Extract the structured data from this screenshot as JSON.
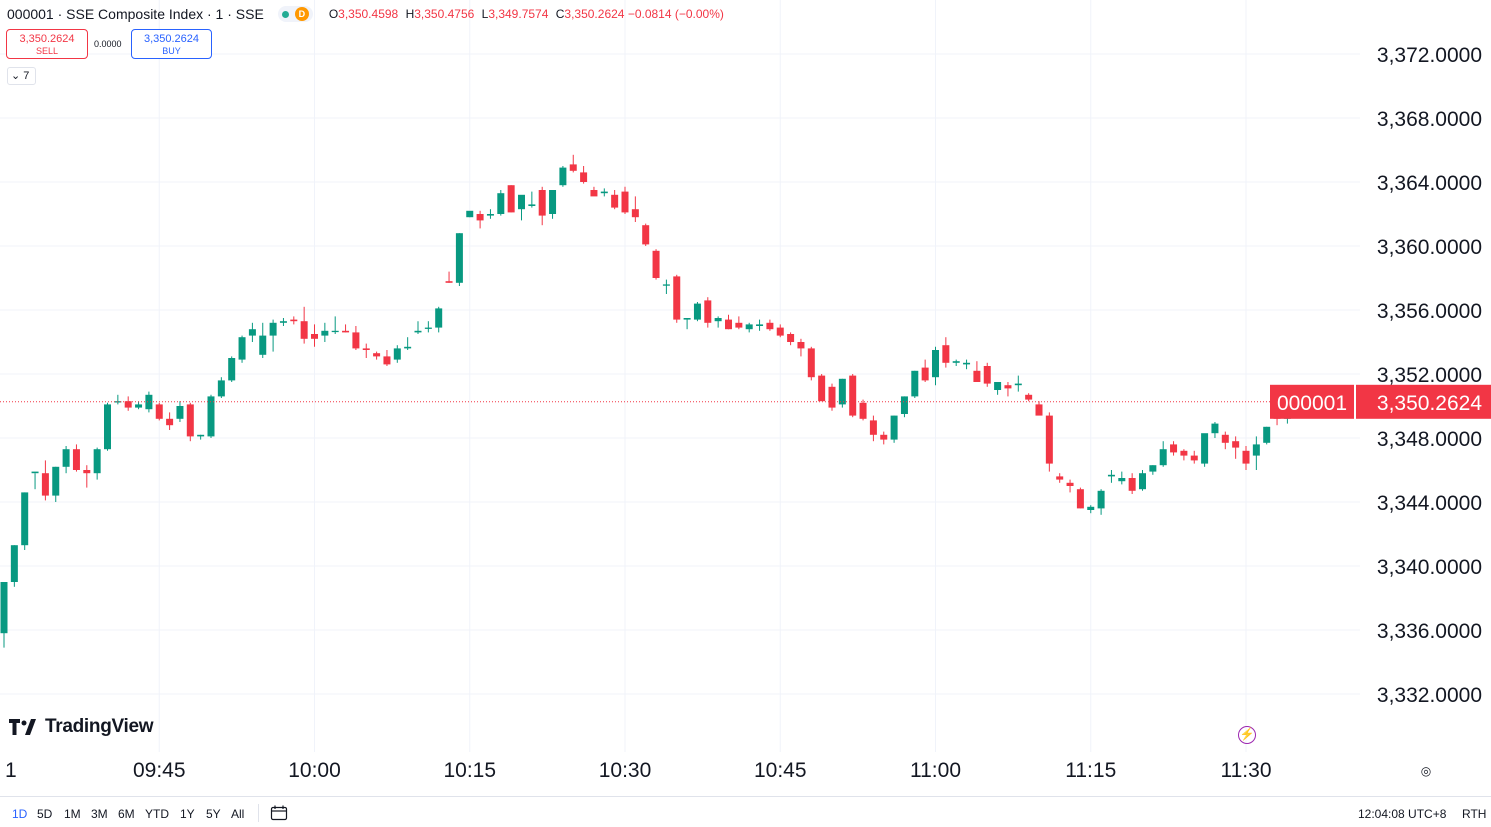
{
  "legend": {
    "title": "000001 · SSE Composite Index · 1 · SSE",
    "badge": "D",
    "o_label": "O",
    "o": "3,350.4598",
    "h_label": "H",
    "h": "3,350.4756",
    "l_label": "L",
    "l": "3,349.7574",
    "c_label": "C",
    "c": "3,350.2624",
    "change": "−0.0814 (−0.00%)"
  },
  "trade": {
    "sell_price": "3,350.2624",
    "sell_label": "SELL",
    "spread": "0.0000",
    "buy_price": "3,350.2624",
    "buy_label": "BUY"
  },
  "indicators_toggle": "7",
  "brand": "TradingView",
  "bottom": {
    "ranges": [
      "1D",
      "5D",
      "1M",
      "3M",
      "6M",
      "YTD",
      "1Y",
      "5Y",
      "All"
    ],
    "active_range": "1D",
    "clock": "12:04:08 UTC+8",
    "session": "RTH"
  },
  "colors": {
    "up": "#089981",
    "down": "#f23645",
    "grid": "#f0f3fa"
  },
  "chart_data": {
    "type": "candlestick",
    "symbol_label": "000001",
    "last_price": "3,350.2624",
    "last_value": 3350.2624,
    "ylim": [
      3329.5,
      3375.5
    ],
    "y_ticks": [
      3332,
      3336,
      3340,
      3344,
      3348,
      3352,
      3356,
      3360,
      3364,
      3368,
      3372
    ],
    "y_tick_labels": [
      "3,332.0000",
      "3,336.0000",
      "3,340.0000",
      "3,344.0000",
      "3,348.0000",
      "3,352.0000",
      "3,356.0000",
      "3,360.0000",
      "3,364.0000",
      "3,368.0000",
      "3,372.0000"
    ],
    "x_start_label": "1",
    "x_ticks": [
      15,
      30,
      45,
      60,
      75,
      90,
      105,
      120
    ],
    "x_tick_labels": [
      "09:45",
      "10:00",
      "10:15",
      "10:30",
      "10:45",
      "11:00",
      "11:15",
      "11:30"
    ],
    "candles": [
      [
        3335.8,
        3339.0,
        3334.9,
        3339.0
      ],
      [
        3339.0,
        3341.3,
        3338.7,
        3341.3
      ],
      [
        3341.3,
        3344.6,
        3341.0,
        3344.6
      ],
      [
        3345.8,
        3345.8,
        3344.8,
        3345.9
      ],
      [
        3345.8,
        3346.6,
        3344.1,
        3344.4
      ],
      [
        3344.4,
        3346.2,
        3344.0,
        3346.2
      ],
      [
        3346.2,
        3347.5,
        3345.8,
        3347.3
      ],
      [
        3347.3,
        3347.6,
        3345.9,
        3346.0
      ],
      [
        3346.0,
        3346.3,
        3344.9,
        3345.8
      ],
      [
        3345.8,
        3347.4,
        3345.4,
        3347.3
      ],
      [
        3347.3,
        3350.2,
        3347.2,
        3350.1
      ],
      [
        3350.3,
        3350.7,
        3350.1,
        3350.3
      ],
      [
        3350.3,
        3350.6,
        3349.7,
        3349.9
      ],
      [
        3349.9,
        3350.3,
        3349.8,
        3350.1
      ],
      [
        3349.8,
        3350.9,
        3349.6,
        3350.7
      ],
      [
        3350.1,
        3350.2,
        3349.1,
        3349.2
      ],
      [
        3349.2,
        3349.6,
        3348.5,
        3348.8
      ],
      [
        3349.2,
        3350.3,
        3349.0,
        3350.0
      ],
      [
        3350.1,
        3350.2,
        3347.8,
        3348.1
      ],
      [
        3348.1,
        3348.2,
        3347.9,
        3348.2
      ],
      [
        3348.1,
        3350.7,
        3348.0,
        3350.6
      ],
      [
        3350.6,
        3351.8,
        3350.5,
        3351.6
      ],
      [
        3351.6,
        3353.1,
        3351.5,
        3353.0
      ],
      [
        3352.9,
        3354.4,
        3352.7,
        3354.3
      ],
      [
        3354.4,
        3355.2,
        3354.0,
        3354.8
      ],
      [
        3353.2,
        3355.2,
        3353.0,
        3354.4
      ],
      [
        3354.4,
        3355.4,
        3353.4,
        3355.2
      ],
      [
        3355.2,
        3355.5,
        3355.0,
        3355.3
      ],
      [
        3355.4,
        3355.6,
        3355.1,
        3355.3
      ],
      [
        3355.3,
        3356.2,
        3353.9,
        3354.2
      ],
      [
        3354.5,
        3355.1,
        3353.7,
        3354.2
      ],
      [
        3354.4,
        3355.2,
        3354.0,
        3354.7
      ],
      [
        3354.7,
        3355.6,
        3354.5,
        3354.7
      ],
      [
        3354.7,
        3355.1,
        3354.6,
        3354.6
      ],
      [
        3354.6,
        3355.0,
        3353.5,
        3353.6
      ],
      [
        3353.6,
        3353.9,
        3353.0,
        3353.5
      ],
      [
        3353.3,
        3353.4,
        3352.9,
        3353.1
      ],
      [
        3353.1,
        3353.5,
        3352.5,
        3352.6
      ],
      [
        3352.9,
        3353.8,
        3352.7,
        3353.6
      ],
      [
        3353.6,
        3354.3,
        3353.5,
        3353.7
      ],
      [
        3354.6,
        3355.3,
        3354.5,
        3354.7
      ],
      [
        3354.9,
        3355.3,
        3354.6,
        3354.9
      ],
      [
        3354.9,
        3356.2,
        3354.6,
        3356.1
      ],
      [
        3357.8,
        3358.4,
        3357.7,
        3357.7
      ],
      [
        3357.7,
        3360.8,
        3357.5,
        3360.8
      ],
      [
        3361.8,
        3362.1,
        3361.8,
        3362.2
      ],
      [
        3362.0,
        3362.2,
        3361.1,
        3361.6
      ],
      [
        3361.9,
        3362.3,
        3361.7,
        3362.0
      ],
      [
        3362.0,
        3363.5,
        3361.9,
        3363.3
      ],
      [
        3363.8,
        3363.8,
        3362.1,
        3362.1
      ],
      [
        3362.3,
        3363.1,
        3361.6,
        3363.2
      ],
      [
        3362.5,
        3363.4,
        3362.4,
        3362.6
      ],
      [
        3363.5,
        3363.7,
        3361.3,
        3361.9
      ],
      [
        3362.0,
        3363.5,
        3361.7,
        3363.5
      ],
      [
        3363.8,
        3365.0,
        3363.7,
        3364.9
      ],
      [
        3365.1,
        3365.7,
        3364.6,
        3364.7
      ],
      [
        3364.6,
        3365.0,
        3363.9,
        3364.0
      ],
      [
        3363.5,
        3363.7,
        3363.2,
        3363.1
      ],
      [
        3363.3,
        3363.6,
        3363.1,
        3363.4
      ],
      [
        3363.2,
        3363.5,
        3362.3,
        3362.4
      ],
      [
        3363.4,
        3363.7,
        3362.0,
        3362.1
      ],
      [
        3362.3,
        3363.1,
        3361.5,
        3361.8
      ],
      [
        3361.3,
        3361.4,
        3360.0,
        3360.1
      ],
      [
        3359.7,
        3359.8,
        3357.9,
        3358.0
      ],
      [
        3357.6,
        3357.9,
        3357.0,
        3357.6
      ],
      [
        3358.1,
        3358.2,
        3355.2,
        3355.4
      ],
      [
        3355.4,
        3355.5,
        3354.8,
        3355.5
      ],
      [
        3355.4,
        3356.5,
        3355.3,
        3356.4
      ],
      [
        3356.6,
        3356.8,
        3354.9,
        3355.2
      ],
      [
        3355.3,
        3355.6,
        3354.9,
        3355.5
      ],
      [
        3355.4,
        3355.7,
        3354.8,
        3354.8
      ],
      [
        3355.2,
        3355.6,
        3354.8,
        3354.9
      ],
      [
        3354.8,
        3355.2,
        3354.6,
        3355.1
      ],
      [
        3355.0,
        3355.4,
        3354.7,
        3355.1
      ],
      [
        3355.2,
        3355.4,
        3354.7,
        3354.8
      ],
      [
        3354.9,
        3355.1,
        3354.3,
        3354.4
      ],
      [
        3354.5,
        3354.6,
        3353.8,
        3354.0
      ],
      [
        3354.0,
        3354.2,
        3353.1,
        3353.6
      ],
      [
        3353.6,
        3353.7,
        3351.6,
        3351.8
      ],
      [
        3351.9,
        3352.0,
        3350.4,
        3350.3
      ],
      [
        3351.2,
        3351.4,
        3349.7,
        3349.9
      ],
      [
        3350.1,
        3351.7,
        3349.9,
        3351.7
      ],
      [
        3351.9,
        3352.0,
        3349.3,
        3349.4
      ],
      [
        3350.2,
        3350.4,
        3349.1,
        3349.2
      ],
      [
        3349.1,
        3349.4,
        3347.8,
        3348.2
      ],
      [
        3348.2,
        3348.4,
        3347.6,
        3347.9
      ],
      [
        3347.9,
        3349.4,
        3347.7,
        3349.4
      ],
      [
        3349.5,
        3350.6,
        3349.3,
        3350.6
      ],
      [
        3350.6,
        3352.2,
        3350.5,
        3352.2
      ],
      [
        3352.4,
        3352.9,
        3351.5,
        3351.6
      ],
      [
        3351.8,
        3353.7,
        3351.3,
        3353.5
      ],
      [
        3353.8,
        3354.3,
        3352.4,
        3352.7
      ],
      [
        3352.7,
        3352.9,
        3352.5,
        3352.8
      ],
      [
        3352.6,
        3352.9,
        3352.3,
        3352.7
      ],
      [
        3352.2,
        3352.8,
        3351.5,
        3351.5
      ],
      [
        3352.5,
        3352.7,
        3351.2,
        3351.4
      ],
      [
        3351.0,
        3351.3,
        3350.7,
        3351.5
      ],
      [
        3351.3,
        3351.5,
        3350.6,
        3351.1
      ],
      [
        3351.3,
        3351.9,
        3350.9,
        3351.4
      ],
      [
        3350.7,
        3350.8,
        3350.3,
        3350.4
      ],
      [
        3350.1,
        3350.3,
        3349.6,
        3349.4
      ],
      [
        3349.4,
        3349.6,
        3345.9,
        3346.4
      ],
      [
        3345.6,
        3345.8,
        3345.2,
        3345.4
      ],
      [
        3345.2,
        3345.4,
        3344.6,
        3345.0
      ],
      [
        3344.8,
        3344.9,
        3343.6,
        3343.6
      ],
      [
        3343.5,
        3343.8,
        3343.3,
        3343.7
      ],
      [
        3343.6,
        3344.8,
        3343.2,
        3344.7
      ],
      [
        3345.6,
        3346.0,
        3345.2,
        3345.7
      ],
      [
        3345.3,
        3345.9,
        3345.1,
        3345.5
      ],
      [
        3345.5,
        3345.8,
        3344.5,
        3344.7
      ],
      [
        3344.8,
        3346.0,
        3344.7,
        3345.8
      ],
      [
        3345.9,
        3346.3,
        3345.7,
        3346.3
      ],
      [
        3346.3,
        3347.8,
        3346.2,
        3347.3
      ],
      [
        3347.6,
        3347.8,
        3346.9,
        3347.1
      ],
      [
        3347.2,
        3347.3,
        3346.6,
        3346.9
      ],
      [
        3346.9,
        3347.2,
        3346.4,
        3346.6
      ],
      [
        3346.4,
        3348.2,
        3346.2,
        3348.3
      ],
      [
        3348.3,
        3349.0,
        3348.0,
        3348.9
      ],
      [
        3348.2,
        3348.4,
        3347.3,
        3347.7
      ],
      [
        3347.8,
        3348.1,
        3346.7,
        3347.4
      ],
      [
        3347.2,
        3347.5,
        3346.0,
        3346.4
      ],
      [
        3346.9,
        3348.1,
        3346.0,
        3347.6
      ],
      [
        3347.7,
        3348.7,
        3347.6,
        3348.7
      ],
      [
        3349.6,
        3349.7,
        3348.8,
        3349.2
      ],
      [
        3349.2,
        3349.7,
        3348.9,
        3349.6
      ],
      [
        3349.6,
        3350.6,
        3349.5,
        3350.4
      ],
      [
        3350.5,
        3351.0,
        3349.8,
        3350.2
      ],
      [
        3350.2,
        3350.5,
        3350.0,
        3350.3
      ],
      [
        3350.5,
        3350.6,
        3349.8,
        3350.2
      ]
    ]
  }
}
